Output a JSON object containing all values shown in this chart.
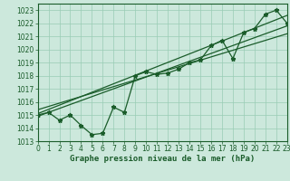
{
  "title": "Graphe pression niveau de la mer (hPa)",
  "bg_color": "#cce8dc",
  "grid_color": "#99ccb5",
  "line_color": "#1a5c2a",
  "xlim": [
    0,
    23
  ],
  "ylim": [
    1013.0,
    1023.5
  ],
  "yticks": [
    1013,
    1014,
    1015,
    1016,
    1017,
    1018,
    1019,
    1020,
    1021,
    1022,
    1023
  ],
  "xticks": [
    0,
    1,
    2,
    3,
    4,
    5,
    6,
    7,
    8,
    9,
    10,
    11,
    12,
    13,
    14,
    15,
    16,
    17,
    18,
    19,
    20,
    21,
    22,
    23
  ],
  "data_x": [
    0,
    1,
    2,
    3,
    4,
    5,
    6,
    7,
    8,
    9,
    10,
    11,
    12,
    13,
    14,
    15,
    16,
    17,
    18,
    19,
    20,
    21,
    22,
    23
  ],
  "data_y": [
    1015.0,
    1015.2,
    1014.6,
    1015.0,
    1014.2,
    1013.5,
    1013.6,
    1015.6,
    1015.2,
    1018.0,
    1018.3,
    1018.1,
    1018.2,
    1018.5,
    1019.0,
    1019.2,
    1020.3,
    1020.7,
    1019.3,
    1021.3,
    1021.6,
    1022.7,
    1023.0,
    1022.0
  ],
  "trend1_x": [
    0,
    23
  ],
  "trend1_y": [
    1014.9,
    1021.8
  ],
  "trend2_x": [
    0,
    23
  ],
  "trend2_y": [
    1015.1,
    1022.6
  ],
  "trend3_x": [
    0,
    23
  ],
  "trend3_y": [
    1015.4,
    1021.2
  ],
  "tick_fontsize": 5.5,
  "label_fontsize": 6.5
}
